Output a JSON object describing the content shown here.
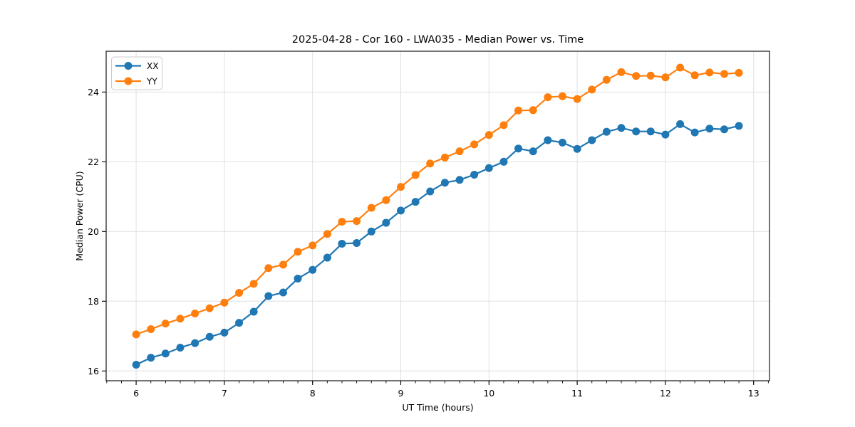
{
  "chart_data": {
    "type": "line",
    "title": "2025-04-28 - Cor 160 - LWA035 - Median Power vs. Time",
    "xlabel": "UT Time (hours)",
    "ylabel": "Median Power (CPU)",
    "xlim": [
      5.66,
      13.18
    ],
    "ylim": [
      15.72,
      25.17
    ],
    "x_major_ticks": [
      6,
      7,
      8,
      9,
      10,
      11,
      12,
      13
    ],
    "x_minor_tick_step_hours": 0.166667,
    "y_major_ticks": [
      16,
      18,
      20,
      22,
      24
    ],
    "grid": true,
    "legend_position": "upper left",
    "colors": {
      "xx": "#1f77b4",
      "yy": "#ff7f0e",
      "grid": "#e0e0e0",
      "spine": "#000000",
      "legend_border": "#cccccc"
    },
    "x": [
      6.0,
      6.167,
      6.333,
      6.5,
      6.667,
      6.833,
      7.0,
      7.167,
      7.333,
      7.5,
      7.667,
      7.833,
      8.0,
      8.167,
      8.333,
      8.5,
      8.667,
      8.833,
      9.0,
      9.167,
      9.333,
      9.5,
      9.667,
      9.833,
      10.0,
      10.167,
      10.333,
      10.5,
      10.667,
      10.833,
      11.0,
      11.167,
      11.333,
      11.5,
      11.667,
      11.833,
      12.0,
      12.167,
      12.333,
      12.5,
      12.667,
      12.833
    ],
    "series": [
      {
        "name": "XX",
        "color": "#1f77b4",
        "values": [
          16.18,
          16.38,
          16.5,
          16.67,
          16.8,
          16.98,
          17.1,
          17.38,
          17.7,
          18.15,
          18.25,
          18.65,
          18.9,
          19.25,
          19.65,
          19.67,
          20.0,
          20.25,
          20.6,
          20.85,
          21.15,
          21.4,
          21.48,
          21.63,
          21.82,
          22.0,
          22.38,
          22.3,
          22.62,
          22.55,
          22.37,
          22.62,
          22.86,
          22.97,
          22.87,
          22.87,
          22.78,
          23.08,
          22.84,
          22.95,
          22.93,
          23.03
        ]
      },
      {
        "name": "YY",
        "color": "#ff7f0e",
        "values": [
          17.05,
          17.2,
          17.36,
          17.5,
          17.65,
          17.8,
          17.96,
          18.24,
          18.5,
          18.95,
          19.05,
          19.42,
          19.6,
          19.93,
          20.28,
          20.3,
          20.68,
          20.9,
          21.28,
          21.62,
          21.95,
          22.12,
          22.3,
          22.5,
          22.77,
          23.05,
          23.47,
          23.48,
          23.85,
          23.88,
          23.8,
          24.07,
          24.35,
          24.57,
          24.46,
          24.47,
          24.42,
          24.7,
          24.48,
          24.56,
          24.52,
          24.55
        ]
      }
    ]
  }
}
